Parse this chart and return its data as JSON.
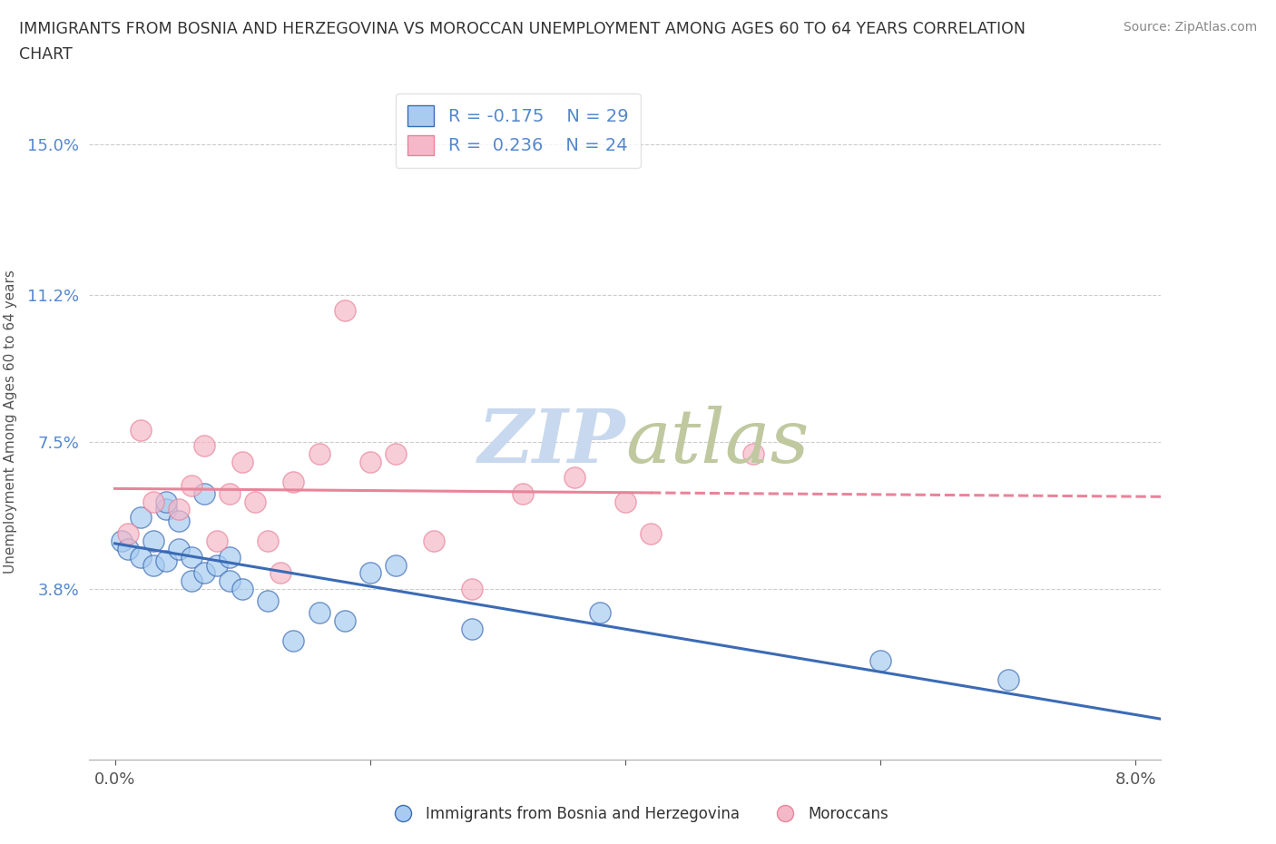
{
  "title": "IMMIGRANTS FROM BOSNIA AND HERZEGOVINA VS MOROCCAN UNEMPLOYMENT AMONG AGES 60 TO 64 YEARS CORRELATION\nCHART",
  "source": "Source: ZipAtlas.com",
  "ylabel": "Unemployment Among Ages 60 to 64 years",
  "xlim": [
    -0.002,
    0.082
  ],
  "ylim": [
    -0.005,
    0.165
  ],
  "yticks": [
    0.038,
    0.075,
    0.112,
    0.15
  ],
  "ytick_labels": [
    "3.8%",
    "7.5%",
    "11.2%",
    "15.0%"
  ],
  "xticks": [
    0.0,
    0.02,
    0.04,
    0.06,
    0.08
  ],
  "xtick_labels": [
    "0.0%",
    "",
    "",
    "",
    "8.0%"
  ],
  "blue_r": -0.175,
  "blue_n": 29,
  "pink_r": 0.236,
  "pink_n": 24,
  "blue_scatter_color": "#A8CCF0",
  "pink_scatter_color": "#F5B8C8",
  "blue_line_color": "#3B6BB5",
  "pink_line_color": "#E8849A",
  "watermark_color": "#C8D8EE",
  "legend_label_blue": "Immigrants from Bosnia and Herzegovina",
  "legend_label_pink": "Moroccans",
  "blue_scatter_x": [
    0.0005,
    0.001,
    0.002,
    0.002,
    0.003,
    0.003,
    0.004,
    0.004,
    0.004,
    0.005,
    0.005,
    0.006,
    0.006,
    0.007,
    0.007,
    0.008,
    0.009,
    0.009,
    0.01,
    0.012,
    0.014,
    0.016,
    0.018,
    0.02,
    0.022,
    0.028,
    0.038,
    0.06,
    0.07
  ],
  "blue_scatter_y": [
    0.05,
    0.048,
    0.056,
    0.046,
    0.05,
    0.044,
    0.058,
    0.06,
    0.045,
    0.055,
    0.048,
    0.04,
    0.046,
    0.062,
    0.042,
    0.044,
    0.046,
    0.04,
    0.038,
    0.035,
    0.025,
    0.032,
    0.03,
    0.042,
    0.044,
    0.028,
    0.032,
    0.02,
    0.015
  ],
  "pink_scatter_x": [
    0.001,
    0.002,
    0.003,
    0.005,
    0.006,
    0.007,
    0.008,
    0.009,
    0.01,
    0.011,
    0.012,
    0.013,
    0.014,
    0.016,
    0.018,
    0.02,
    0.022,
    0.025,
    0.028,
    0.032,
    0.036,
    0.04,
    0.042,
    0.05
  ],
  "pink_scatter_y": [
    0.052,
    0.078,
    0.06,
    0.058,
    0.064,
    0.074,
    0.05,
    0.062,
    0.07,
    0.06,
    0.05,
    0.042,
    0.065,
    0.072,
    0.108,
    0.07,
    0.072,
    0.05,
    0.038,
    0.062,
    0.066,
    0.06,
    0.052,
    0.072
  ]
}
